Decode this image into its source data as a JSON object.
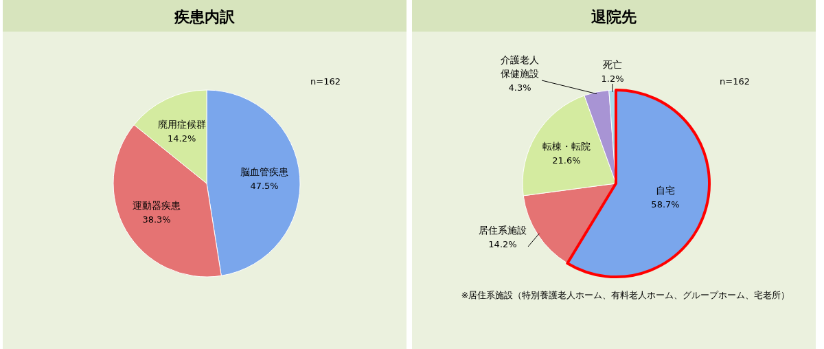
{
  "chart_data": [
    {
      "type": "pie",
      "title": "疾患内訳",
      "categories": [
        "脳血管疾患",
        "運動器疾患",
        "廃用症候群"
      ],
      "values": [
        47.5,
        38.3,
        14.2
      ],
      "value_labels": [
        "47.5%",
        "38.3%",
        "14.2%"
      ],
      "colors": [
        "#7aa6ec",
        "#e57373",
        "#d4eba0"
      ],
      "annotations": [
        "n=162"
      ],
      "legend": false
    },
    {
      "type": "pie",
      "title": "退院先",
      "categories": [
        "自宅",
        "居住系施設",
        "転棟・転院",
        "介護老人保健施設",
        "死亡"
      ],
      "values": [
        58.7,
        14.2,
        21.6,
        4.3,
        1.2
      ],
      "value_labels": [
        "58.7%",
        "14.2%",
        "21.6%",
        "4.3%",
        "1.2%"
      ],
      "colors": [
        "#7aa6ec",
        "#e57373",
        "#d4eba0",
        "#a894d4",
        "#a8dcea"
      ],
      "annotations": [
        "n=162",
        "※居住系施設（特別養護老人ホーム、有料老人ホーム、グループホーム、宅老所）"
      ],
      "legend": false
    }
  ]
}
